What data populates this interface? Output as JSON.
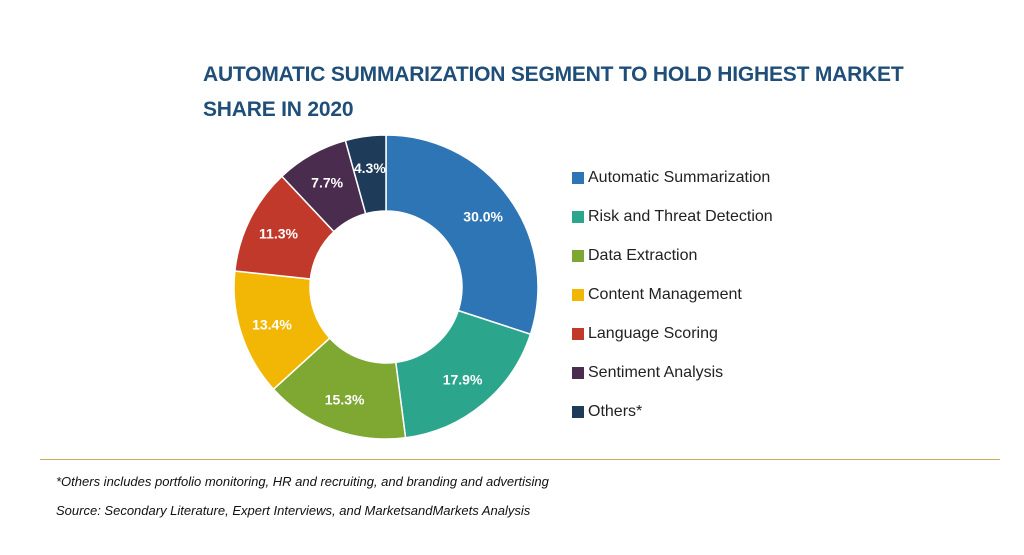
{
  "colors": {
    "title": "#1f4e79",
    "divider": "#c9a75f",
    "slice_label": "#ffffff"
  },
  "chart_data": {
    "type": "pie",
    "style": "donut",
    "title": "AUTOMATIC SUMMARIZATION SEGMENT TO HOLD HIGHEST MARKET SHARE IN 2020",
    "legend_position": "right",
    "categories": [
      "Automatic Summarization",
      "Risk and Threat Detection",
      "Data Extraction",
      "Content Management",
      "Language Scoring",
      "Sentiment Analysis",
      "Others*"
    ],
    "values": [
      30.0,
      17.9,
      15.3,
      13.4,
      11.3,
      7.7,
      4.3
    ],
    "labels": [
      "30.0%",
      "17.9%",
      "15.3%",
      "13.4%",
      "11.3%",
      "7.7%",
      "4.3%"
    ],
    "colors": [
      "#2e75b6",
      "#2ca58d",
      "#7ea832",
      "#f2b705",
      "#c0392b",
      "#4a2c4e",
      "#1f3b5a"
    ]
  },
  "footnote": "*Others includes portfolio monitoring, HR and recruiting, and branding and advertising",
  "source": "Source: Secondary Literature, Expert Interviews, and MarketsandMarkets Analysis"
}
